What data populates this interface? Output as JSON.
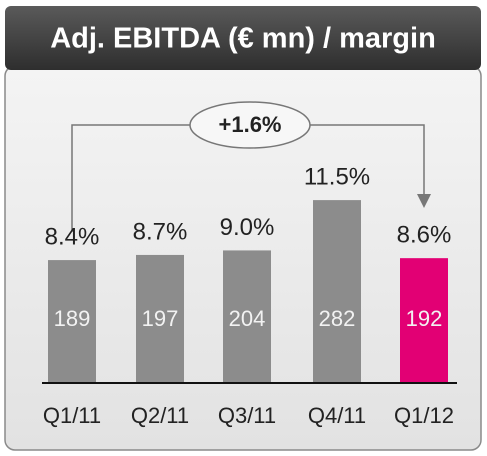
{
  "chart_data": {
    "type": "bar",
    "title": "Adj. EBITDA (€ mn) / margin",
    "categories": [
      "Q1/11",
      "Q2/11",
      "Q3/11",
      "Q4/11",
      "Q1/12"
    ],
    "values": [
      189,
      197,
      204,
      282,
      192
    ],
    "colors": [
      "#8c8c8c",
      "#8c8c8c",
      "#8c8c8c",
      "#8c8c8c",
      "#e20074"
    ],
    "margin_labels": [
      "8.4%",
      "8.7%",
      "9.0%",
      "11.5%",
      "8.6%"
    ],
    "annotation": "+1.6%"
  }
}
